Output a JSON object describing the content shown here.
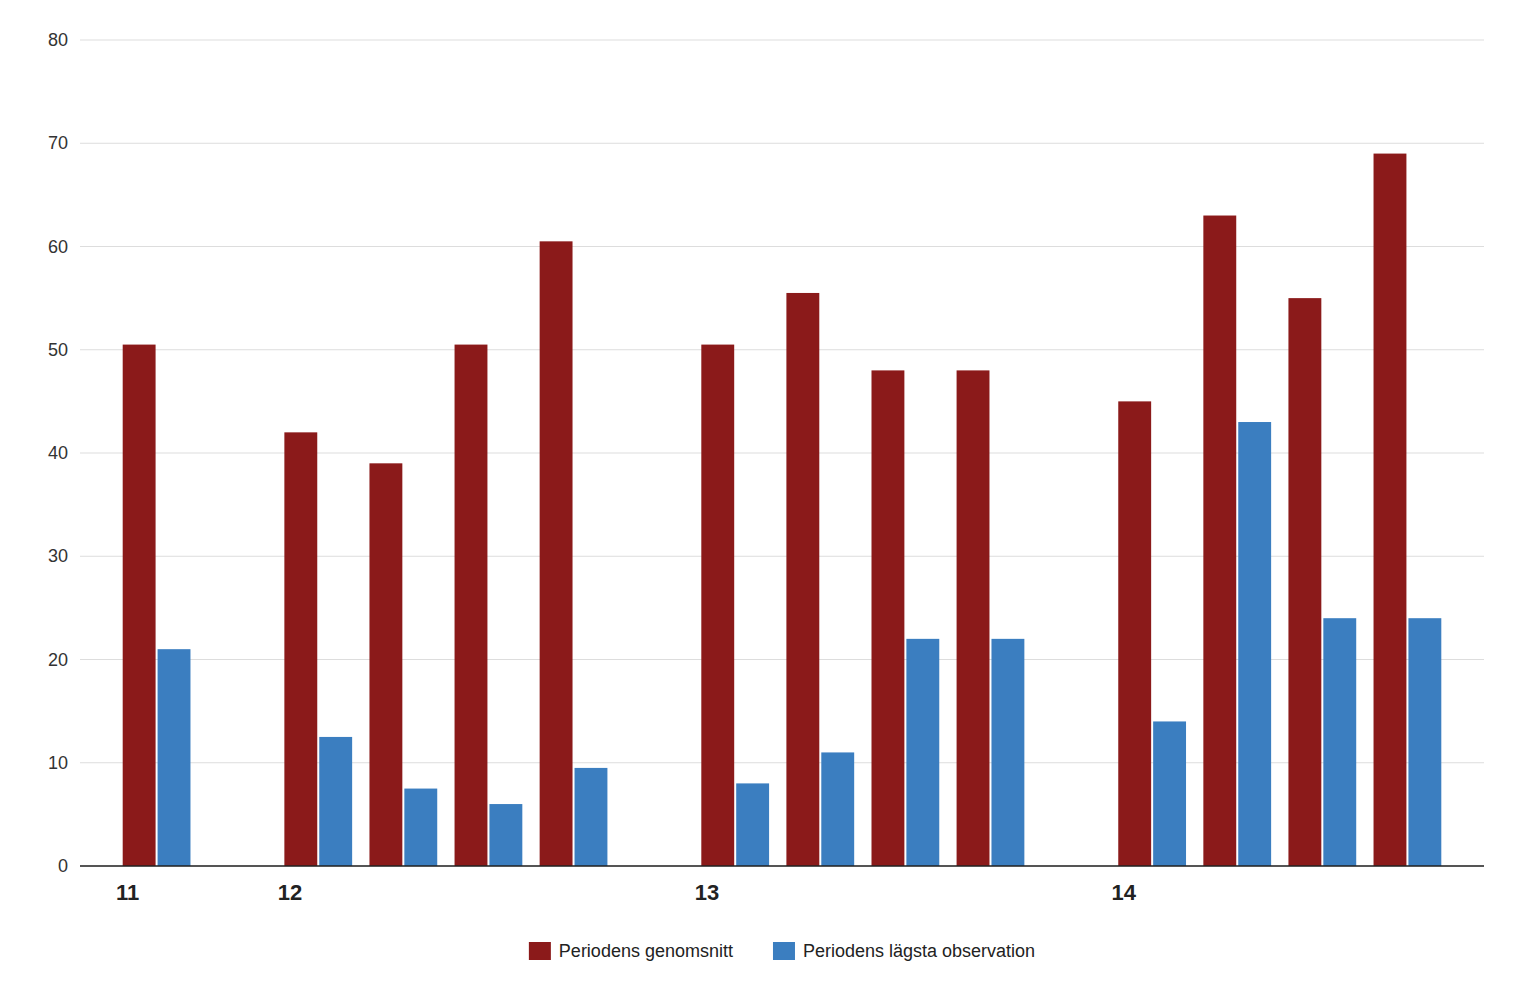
{
  "chart_data": {
    "type": "bar",
    "categories": [
      "11",
      "12",
      null,
      null,
      null,
      "13",
      null,
      null,
      null,
      "14",
      null,
      null,
      null
    ],
    "series": [
      {
        "name": "Periodens genomsnitt",
        "color": "#8B1A1A",
        "values": [
          50.5,
          42.0,
          39.0,
          50.5,
          60.5,
          50.5,
          55.5,
          48.0,
          48.0,
          45.0,
          63.0,
          55.0,
          69.0
        ]
      },
      {
        "name": "Periodens lägsta observation",
        "color": "#3B7EC0",
        "values": [
          21.0,
          12.5,
          7.5,
          6.0,
          9.5,
          8.0,
          11.0,
          22.0,
          22.0,
          14.0,
          43.0,
          24.0,
          24.0
        ]
      }
    ],
    "ylim": [
      0,
      80
    ],
    "yticks": [
      0,
      10,
      20,
      30,
      40,
      50,
      60,
      70,
      80
    ],
    "grid": true,
    "legend": "bottom"
  }
}
